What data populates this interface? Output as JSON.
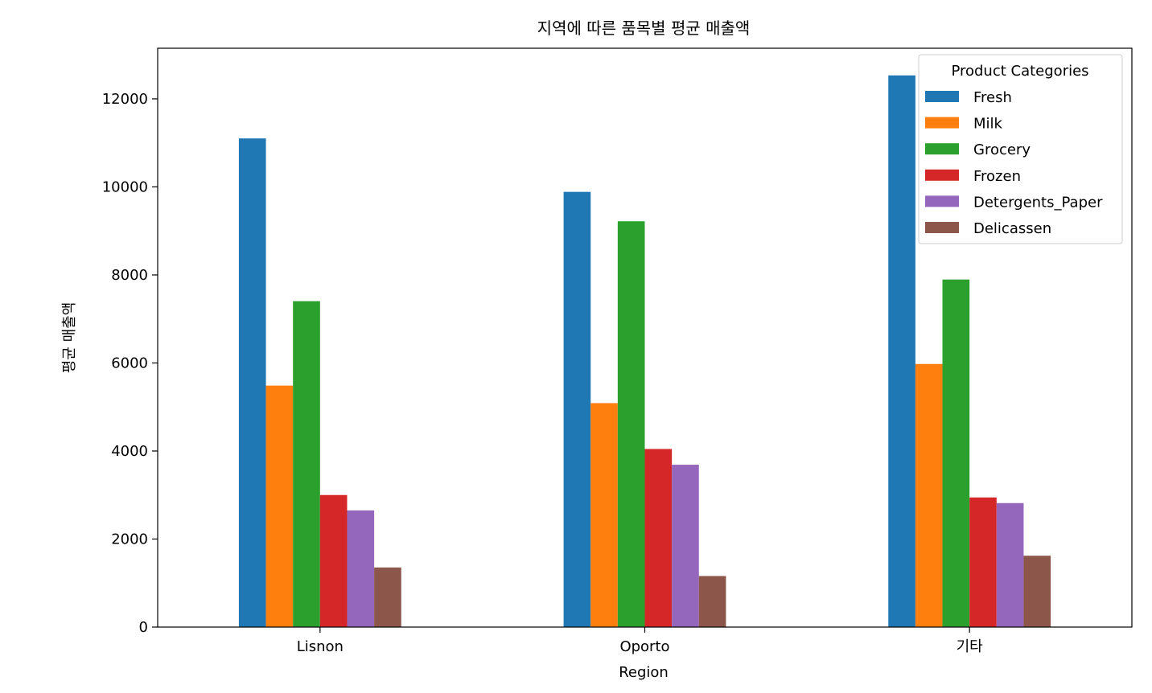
{
  "chart_data": {
    "type": "bar",
    "title": "지역에 따른 품목별 평균 매출액",
    "xlabel": "Region",
    "ylabel": "평균 매출액",
    "categories": [
      "Lisnon",
      "Oporto",
      "기타"
    ],
    "ylim": [
      0,
      13150
    ],
    "yticks": [
      0,
      2000,
      4000,
      6000,
      8000,
      10000,
      12000
    ],
    "grid": false,
    "legend": {
      "title": "Product Categories",
      "position": "top-right"
    },
    "series": [
      {
        "name": "Fresh",
        "color": "#1f77b4",
        "values": [
          11101,
          9887,
          12533
        ]
      },
      {
        "name": "Milk",
        "color": "#ff7f0e",
        "values": [
          5486,
          5088,
          5977
        ]
      },
      {
        "name": "Grocery",
        "color": "#2ca02c",
        "values": [
          7404,
          9219,
          7896
        ]
      },
      {
        "name": "Frozen",
        "color": "#d62728",
        "values": [
          3000,
          4046,
          2945
        ]
      },
      {
        "name": "Detergents_Paper",
        "color": "#9467bd",
        "values": [
          2651,
          3688,
          2817
        ]
      },
      {
        "name": "Delicassen",
        "color": "#8c564b",
        "values": [
          1354,
          1160,
          1621
        ]
      }
    ]
  }
}
